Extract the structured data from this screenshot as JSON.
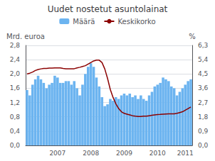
{
  "chart_data": {
    "type": "bar",
    "title": "Uudet nostetut asuntolainat",
    "ylabel": "Mrd. euroa",
    "y2label": "%",
    "categories": [
      null,
      null,
      null,
      null,
      null,
      null,
      null,
      null,
      null,
      null,
      null,
      "2007",
      null,
      null,
      null,
      null,
      null,
      null,
      null,
      null,
      null,
      null,
      null,
      "2008",
      null,
      null,
      null,
      null,
      null,
      null,
      null,
      null,
      null,
      null,
      null,
      "2009",
      null,
      null,
      null,
      null,
      null,
      null,
      null,
      null,
      null,
      null,
      null,
      "2010",
      null,
      null,
      null,
      null,
      null,
      null,
      null,
      null,
      null,
      "2011",
      null,
      null
    ],
    "series": [
      {
        "name": "Määrä",
        "type": "bar",
        "color": "#6cb4f0",
        "values": [
          1.55,
          1.4,
          1.7,
          1.85,
          1.95,
          1.85,
          1.75,
          1.6,
          1.7,
          1.75,
          1.95,
          1.9,
          1.75,
          1.75,
          1.8,
          1.8,
          1.7,
          1.8,
          1.6,
          1.4,
          1.7,
          2.0,
          2.2,
          2.3,
          2.2,
          1.9,
          1.65,
          1.35,
          1.1,
          1.15,
          1.3,
          1.25,
          1.35,
          1.3,
          1.4,
          1.45,
          1.4,
          1.45,
          1.35,
          1.4,
          1.3,
          1.4,
          1.3,
          1.25,
          1.4,
          1.5,
          1.65,
          1.7,
          1.75,
          1.9,
          1.85,
          1.8,
          1.65,
          1.6,
          1.4,
          1.5,
          1.6,
          1.7,
          1.8,
          1.85
        ]
      },
      {
        "name": "Keskikorko",
        "type": "line",
        "color": "#8b0000",
        "axis": "y2",
        "values": [
          4.5,
          4.55,
          4.62,
          4.72,
          4.78,
          4.82,
          4.85,
          4.85,
          4.87,
          4.87,
          4.88,
          4.88,
          4.88,
          4.85,
          4.83,
          4.83,
          4.83,
          4.83,
          4.88,
          4.92,
          4.97,
          5.02,
          5.12,
          5.22,
          5.32,
          5.37,
          5.37,
          5.22,
          4.82,
          4.22,
          3.52,
          3.02,
          2.62,
          2.32,
          2.12,
          2.02,
          1.97,
          1.92,
          1.87,
          1.84,
          1.82,
          1.82,
          1.84,
          1.84,
          1.87,
          1.9,
          1.92,
          1.94,
          1.95,
          1.97,
          1.98,
          1.99,
          1.99,
          1.99,
          2.02,
          2.07,
          2.12,
          2.22,
          2.32,
          2.42
        ]
      }
    ],
    "ylim": [
      0.0,
      2.8
    ],
    "yticks": [
      {
        "value": 0.0,
        "label": "0,0"
      },
      {
        "value": 0.4,
        "label": "0,4"
      },
      {
        "value": 0.8,
        "label": "0,8"
      },
      {
        "value": 1.2,
        "label": "1,2"
      },
      {
        "value": 1.6,
        "label": "1,6"
      },
      {
        "value": 2.0,
        "label": "2,0"
      },
      {
        "value": 2.4,
        "label": "2,4"
      },
      {
        "value": 2.8,
        "label": "2,8"
      }
    ],
    "y2lim": [
      0.0,
      6.3
    ],
    "y2ticks": [
      {
        "value": 0.0,
        "label": "0,0"
      },
      {
        "value": 0.9,
        "label": "0,9"
      },
      {
        "value": 1.8,
        "label": "1,8"
      },
      {
        "value": 2.7,
        "label": "2,7"
      },
      {
        "value": 3.6,
        "label": "3,6"
      },
      {
        "value": 4.5,
        "label": "4,5"
      },
      {
        "value": 5.4,
        "label": "5,4"
      },
      {
        "value": 6.3,
        "label": "6,3"
      }
    ],
    "grid": true,
    "legend": "top"
  }
}
